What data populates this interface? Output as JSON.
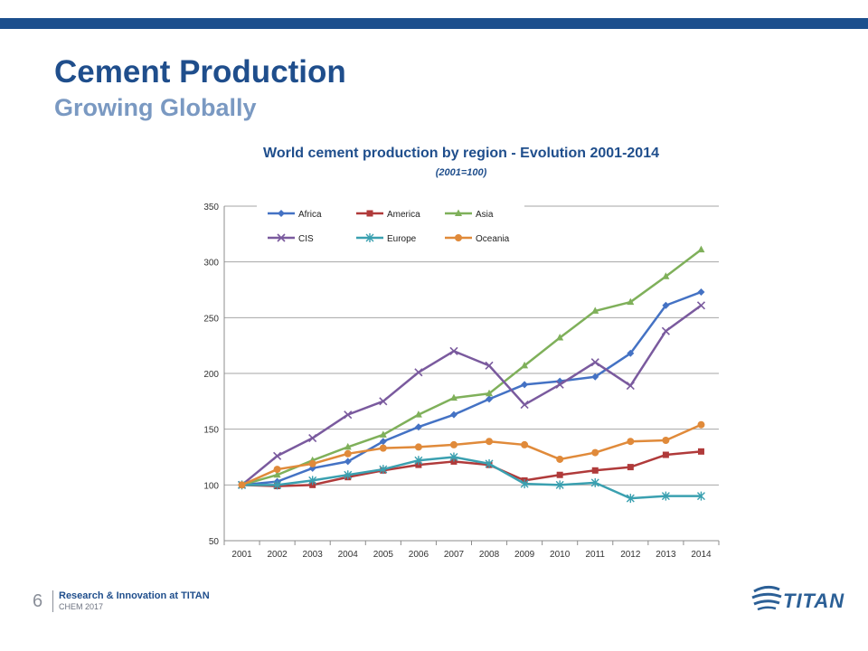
{
  "slide": {
    "title": "Cement Production",
    "subtitle": "Growing Globally",
    "page_number": "6",
    "footer_line1": "Research & Innovation at TITAN",
    "footer_line2": "CHEM 2017",
    "logo_text": "TITAN"
  },
  "colors": {
    "top_bar": "#1c4f8d",
    "title": "#1f4e8c",
    "subtitle": "#7a99c2"
  },
  "chart_data": {
    "type": "line",
    "title": "World cement production by region - Evolution 2001-2014",
    "subtitle": "(2001=100)",
    "categories": [
      "2001",
      "2002",
      "2003",
      "2004",
      "2005",
      "2006",
      "2007",
      "2008",
      "2009",
      "2010",
      "2011",
      "2012",
      "2013",
      "2014"
    ],
    "ylim": [
      50,
      350
    ],
    "yticks": [
      50,
      100,
      150,
      200,
      250,
      300,
      350
    ],
    "grid": true,
    "legend_position": "top-left",
    "series": [
      {
        "name": "Africa",
        "color": "#4472c4",
        "marker": "diamond",
        "values": [
          100,
          103,
          115,
          121,
          139,
          152,
          163,
          177,
          190,
          193,
          197,
          218,
          261,
          273
        ]
      },
      {
        "name": "America",
        "color": "#b03a3a",
        "marker": "square",
        "values": [
          100,
          99,
          100,
          107,
          113,
          118,
          121,
          118,
          104,
          109,
          113,
          116,
          127,
          130
        ]
      },
      {
        "name": "Asia",
        "color": "#7fb05a",
        "marker": "triangle",
        "values": [
          100,
          109,
          122,
          134,
          145,
          163,
          178,
          182,
          207,
          232,
          256,
          264,
          287,
          311
        ]
      },
      {
        "name": "CIS",
        "color": "#7a5a9e",
        "marker": "x",
        "values": [
          100,
          126,
          142,
          163,
          175,
          201,
          220,
          207,
          172,
          190,
          210,
          189,
          238,
          261
        ]
      },
      {
        "name": "Europe",
        "color": "#3aa0b0",
        "marker": "star",
        "values": [
          100,
          100,
          104,
          109,
          114,
          122,
          125,
          119,
          101,
          100,
          102,
          88,
          90,
          90
        ]
      },
      {
        "name": "Oceania",
        "color": "#e08a3a",
        "marker": "circle",
        "values": [
          100,
          114,
          119,
          128,
          133,
          134,
          136,
          139,
          136,
          123,
          129,
          139,
          140,
          154
        ]
      }
    ]
  }
}
